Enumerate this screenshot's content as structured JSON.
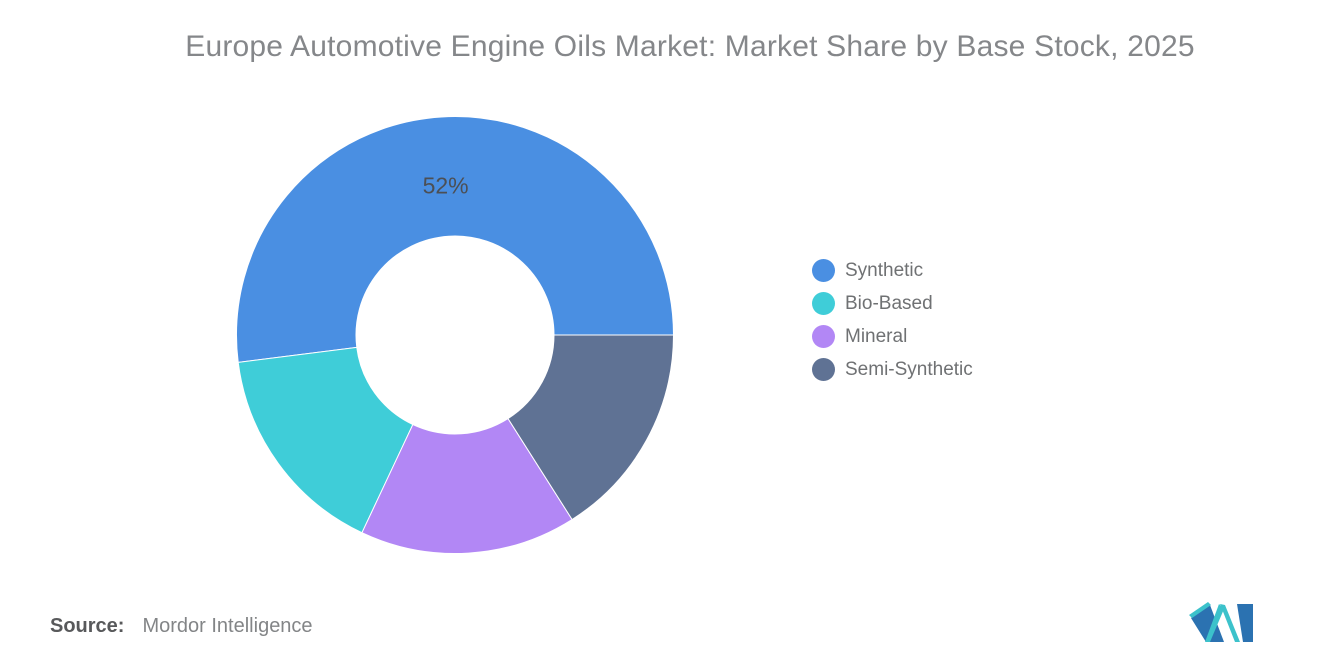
{
  "title": "Europe Automotive Engine Oils Market: Market Share by Base Stock, 2025",
  "source": {
    "label": "Source:",
    "value": "Mordor Intelligence"
  },
  "logo": {
    "name": "Mordor Intelligence",
    "blue": "#2B72B1",
    "teal": "#3CC2CB"
  },
  "chart_data": {
    "type": "pie",
    "subtype": "donut",
    "title": "Europe Automotive Engine Oils Market: Market Share by Base Stock, 2025",
    "legend_position": "right",
    "start_angle_deg": 0,
    "direction": "counterclockwise",
    "data_label_color": "#4c4f54",
    "slices": [
      {
        "label": "Synthetic",
        "value": 52,
        "color": "#4A8FE2",
        "data_label": "52%"
      },
      {
        "label": "Bio-Based",
        "value": 16,
        "color": "#3FCDD8",
        "data_label": ""
      },
      {
        "label": "Mineral",
        "value": 16,
        "color": "#B287F5",
        "data_label": ""
      },
      {
        "label": "Semi-Synthetic",
        "value": 16,
        "color": "#5F7294",
        "data_label": ""
      }
    ]
  }
}
